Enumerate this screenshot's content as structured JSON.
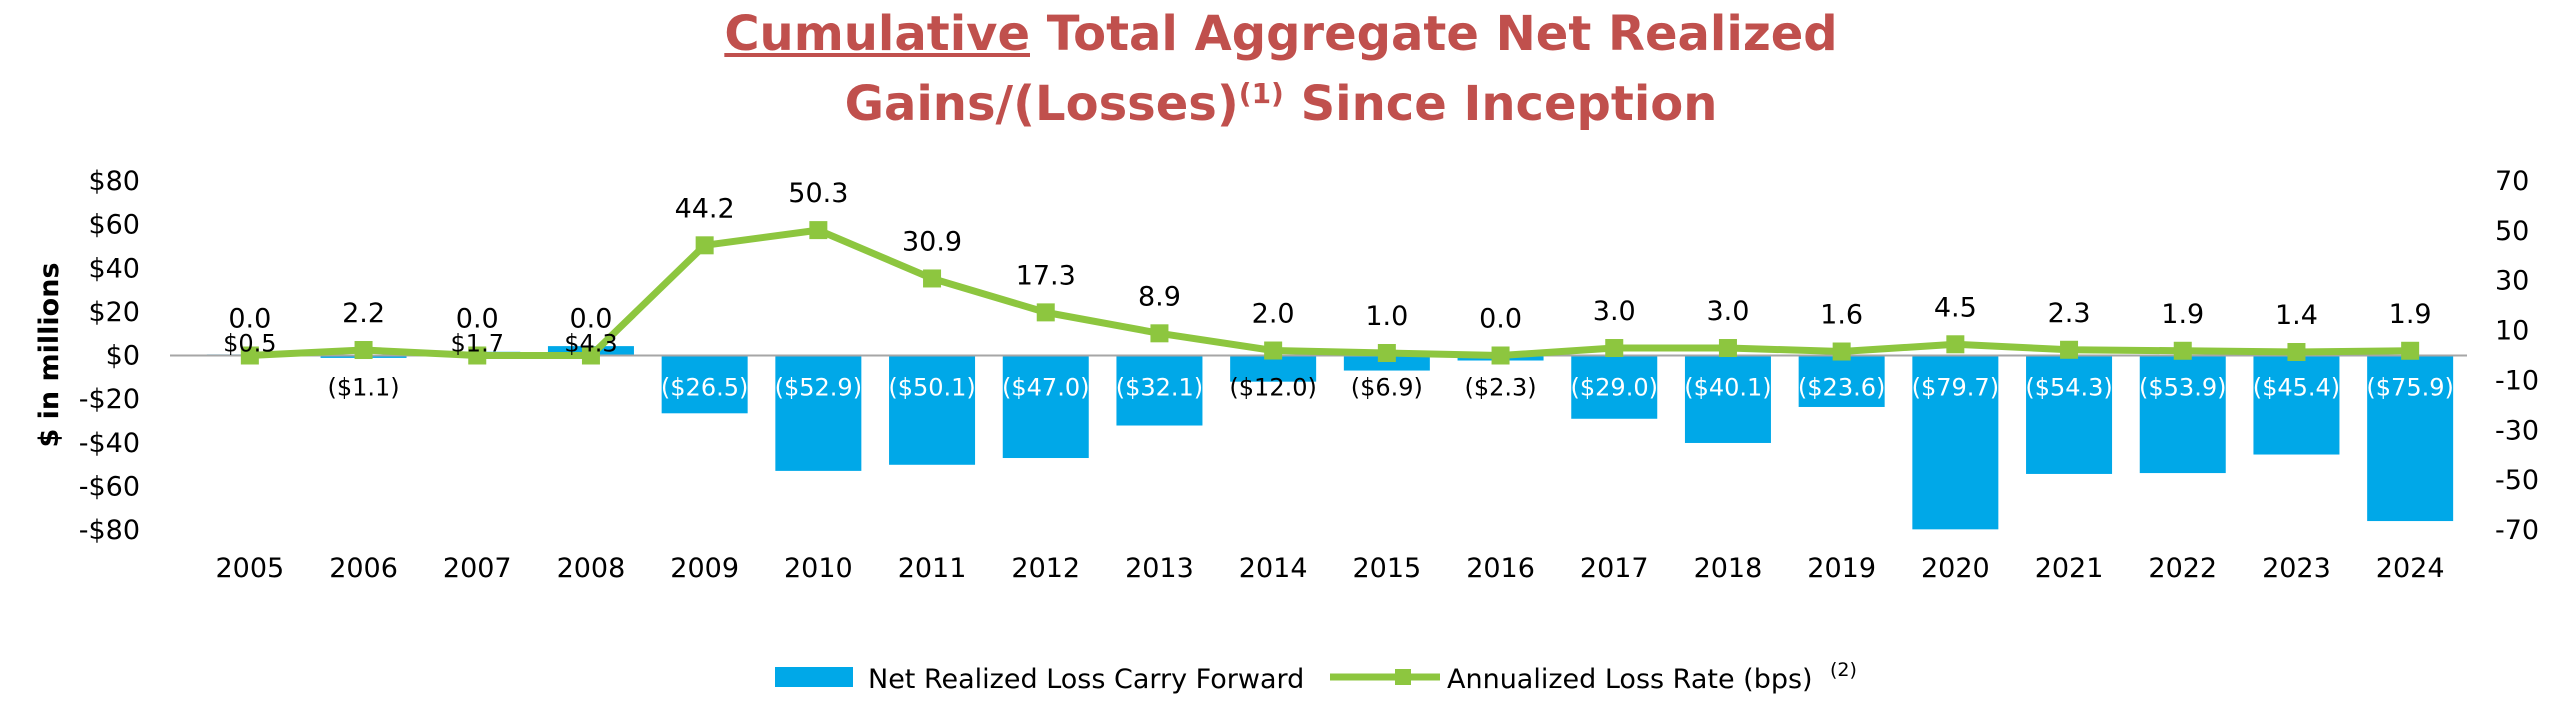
{
  "chart_data": {
    "type": "bar",
    "title": {
      "underlined": "Cumulative",
      "line1_rest": "Total Aggregate Net Realized",
      "line2_pre": "Gains/(Losses)",
      "line2_sup": "(1)",
      "line2_post": "Since Inception"
    },
    "ylabel": "$ in millions",
    "categories": [
      "2005",
      "2006",
      "2007",
      "2008",
      "2009",
      "2010",
      "2011",
      "2012",
      "2013",
      "2014",
      "2015",
      "2016",
      "2017",
      "2018",
      "2019",
      "2020",
      "2021",
      "2022",
      "2023",
      "2024"
    ],
    "left_axis": {
      "ylim": [
        -80,
        80
      ],
      "ticks": [
        80,
        60,
        40,
        20,
        0,
        -20,
        -40,
        -60,
        -80
      ],
      "tick_labels": [
        "$80",
        "$60",
        "$40",
        "$20",
        "$0",
        "-$20",
        "-$40",
        "-$60",
        "-$80"
      ]
    },
    "right_axis": {
      "ylim": [
        -70,
        70
      ],
      "ticks": [
        70,
        50,
        30,
        10,
        -10,
        -30,
        -50,
        -70
      ],
      "tick_labels": [
        "70",
        "50",
        "30",
        "10",
        "-10",
        "-30",
        "-50",
        "-70"
      ]
    },
    "series": [
      {
        "name": "Net Realized Loss Carry Forward",
        "type": "bar",
        "axis": "left",
        "color": "#00a8e8",
        "values": [
          0.5,
          -1.1,
          1.7,
          4.3,
          -26.5,
          -52.9,
          -50.1,
          -47.0,
          -32.1,
          -12.0,
          -6.9,
          -2.3,
          -29.0,
          -40.1,
          -23.6,
          -79.7,
          -54.3,
          -53.9,
          -45.4,
          -75.9
        ],
        "labels": [
          "$0.5",
          "($1.1)",
          "$1.7",
          "$4.3",
          "($26.5)",
          "($52.9)",
          "($50.1)",
          "($47.0)",
          "($32.1)",
          "($12.0)",
          "($6.9)",
          "($2.3)",
          "($29.0)",
          "($40.1)",
          "($23.6)",
          "($79.7)",
          "($54.3)",
          "($53.9)",
          "($45.4)",
          "($75.9)"
        ]
      },
      {
        "name": "Annualized Loss Rate (bps)",
        "name_sup": "(2)",
        "type": "line",
        "axis": "right",
        "color": "#8dc63f",
        "values": [
          0.0,
          2.2,
          0.0,
          0.0,
          44.2,
          50.3,
          30.9,
          17.3,
          8.9,
          2.0,
          1.0,
          0.0,
          3.0,
          3.0,
          1.6,
          4.5,
          2.3,
          1.9,
          1.4,
          1.9
        ],
        "labels": [
          "0.0",
          "2.2",
          "0.0",
          "0.0",
          "44.2",
          "50.3",
          "30.9",
          "17.3",
          "8.9",
          "2.0",
          "1.0",
          "0.0",
          "3.0",
          "3.0",
          "1.6",
          "4.5",
          "2.3",
          "1.9",
          "1.4",
          "1.9"
        ]
      }
    ],
    "legend_position": "bottom-center",
    "grid": false
  }
}
